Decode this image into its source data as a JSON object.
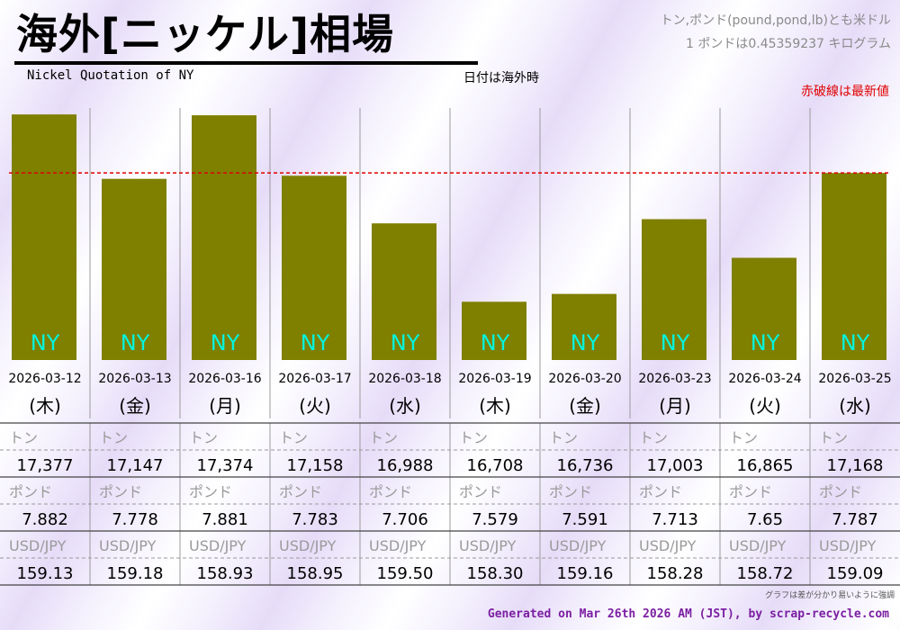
{
  "title": "海外[ニッケル]相場",
  "subtitle": "Nickel Quotation of NY",
  "date_note": "日付は海外時",
  "unit_note_1": "トン,ポンド(pound,pond,lb)とも米ドル",
  "unit_note_2": "1 ポンドは0.45359237 キログラム",
  "latest_note": "赤破線は最新値",
  "footer_note": "グラフは差が分かり易いように強調",
  "credit": "Generated on Mar 26th 2026 AM (JST), by scrap-recycle.com",
  "row_labels": {
    "ton": "トン",
    "pound": "ポンド",
    "usdjpy": "USD/JPY"
  },
  "colors": {
    "bar": "#7f7f00",
    "bar_label": "#00f5e0",
    "latest_line": "#e00000",
    "credit": "#7b1fa2"
  },
  "chart_data": {
    "type": "bar",
    "categories": [
      "2026-03-12",
      "2026-03-13",
      "2026-03-16",
      "2026-03-17",
      "2026-03-18",
      "2026-03-19",
      "2026-03-20",
      "2026-03-23",
      "2026-03-24",
      "2026-03-25"
    ],
    "weekdays": [
      "(木)",
      "(金)",
      "(月)",
      "(火)",
      "(水)",
      "(木)",
      "(金)",
      "(月)",
      "(火)",
      "(水)"
    ],
    "bar_label": "NY",
    "series": [
      {
        "name": "トン",
        "values": [
          17377,
          17147,
          17374,
          17158,
          16988,
          16708,
          16736,
          17003,
          16865,
          17168
        ],
        "display": [
          "17,377",
          "17,147",
          "17,374",
          "17,158",
          "16,988",
          "16,708",
          "16,736",
          "17,003",
          "16,865",
          "17,168"
        ]
      },
      {
        "name": "ポンド",
        "values": [
          7.882,
          7.778,
          7.881,
          7.783,
          7.706,
          7.579,
          7.591,
          7.713,
          7.65,
          7.787
        ],
        "display": [
          "7.882",
          "7.778",
          "7.881",
          "7.783",
          "7.706",
          "7.579",
          "7.591",
          "7.713",
          "7.65",
          "7.787"
        ]
      },
      {
        "name": "USD/JPY",
        "values": [
          159.13,
          159.18,
          158.93,
          158.95,
          159.5,
          158.3,
          159.16,
          158.28,
          158.72,
          159.09
        ],
        "display": [
          "159.13",
          "159.18",
          "158.93",
          "158.95",
          "159.50",
          "158.30",
          "159.16",
          "158.28",
          "158.72",
          "159.09"
        ]
      }
    ],
    "latest_value": 17168,
    "grid": true,
    "legend": "none"
  }
}
